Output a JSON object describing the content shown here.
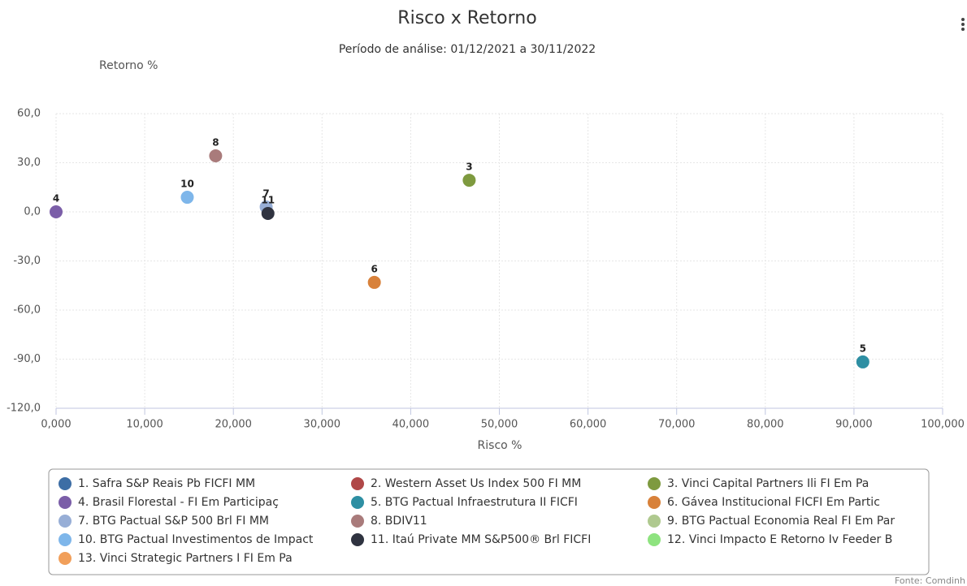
{
  "chart_data": {
    "type": "scatter",
    "title": "Risco x Retorno",
    "subtitle": "Período de análise: 01/12/2021 a 30/11/2022",
    "y_label": "Retorno %",
    "x_label": "Risco %",
    "source": "Fonte: Comdinh",
    "xlim": [
      0,
      100
    ],
    "ylim": [
      -120,
      60
    ],
    "xticks": [
      {
        "value": 0,
        "label": "0,000"
      },
      {
        "value": 10,
        "label": "10,000"
      },
      {
        "value": 20,
        "label": "20,000"
      },
      {
        "value": 30,
        "label": "30,000"
      },
      {
        "value": 40,
        "label": "40,000"
      },
      {
        "value": 50,
        "label": "50,000"
      },
      {
        "value": 60,
        "label": "60,000"
      },
      {
        "value": 70,
        "label": "70,000"
      },
      {
        "value": 80,
        "label": "80,000"
      },
      {
        "value": 90,
        "label": "90,000"
      },
      {
        "value": 100,
        "label": "100,000"
      }
    ],
    "yticks": [
      {
        "value": 60,
        "label": "60,0"
      },
      {
        "value": 30,
        "label": "30,0"
      },
      {
        "value": 0,
        "label": "0,0"
      },
      {
        "value": -30,
        "label": "-30,0"
      },
      {
        "value": -60,
        "label": "-60,0"
      },
      {
        "value": -90,
        "label": "-90,0"
      },
      {
        "value": -120,
        "label": "-120,0"
      }
    ],
    "grid": true,
    "series": [
      {
        "name": "1. Safra S&P Reais Pb FICFI MM",
        "color": "#3d6ea5",
        "x": [],
        "y": []
      },
      {
        "name": "2. Western Asset Us Index 500 FI MM",
        "color": "#b04848",
        "x": [],
        "y": []
      },
      {
        "name": "3. Vinci Capital Partners Ili FI Em Pa",
        "color": "#7e9a3f",
        "point_label": "3",
        "x": [
          46.6
        ],
        "y": [
          19.3
        ]
      },
      {
        "name": "4. Brasil Florestal - FI Em Participaç",
        "color": "#7b5ea8",
        "point_label": "4",
        "x": [
          0
        ],
        "y": [
          0
        ]
      },
      {
        "name": "5. BTG Pactual Infraestrutura II FICFI",
        "color": "#2e8fa3",
        "point_label": "5",
        "x": [
          91.0
        ],
        "y": [
          -91.7
        ]
      },
      {
        "name": "6. Gávea Institucional FICFI Em Partic",
        "color": "#d8813a",
        "point_label": "6",
        "x": [
          35.9
        ],
        "y": [
          -43.1
        ]
      },
      {
        "name": "7. BTG Pactual S&P 500 Brl FI MM",
        "color": "#97aed6",
        "point_label": "7",
        "x": [
          23.7
        ],
        "y": [
          3
        ]
      },
      {
        "name": "8. BDIV11",
        "color": "#a97b7b",
        "point_label": "8",
        "x": [
          18.0
        ],
        "y": [
          34.2
        ]
      },
      {
        "name": "9. BTG Pactual Economia Real FI Em Par",
        "color": "#afc98f",
        "x": [],
        "y": []
      },
      {
        "name": "10. BTG Pactual Investimentos de Impact",
        "color": "#7eb6ea",
        "point_label": "10",
        "x": [
          14.8
        ],
        "y": [
          8.9
        ]
      },
      {
        "name": "11. Itaú Private MM S&P500® Brl FICFI",
        "color": "#2f3340",
        "point_label": "11",
        "x": [
          23.9
        ],
        "y": [
          -1
        ]
      },
      {
        "name": "12. Vinci Impacto E Retorno Iv Feeder B",
        "color": "#8ee37f",
        "x": [],
        "y": []
      },
      {
        "name": "13. Vinci Strategic Partners I FI Em Pa",
        "color": "#f19f5a",
        "x": [],
        "y": []
      }
    ]
  }
}
